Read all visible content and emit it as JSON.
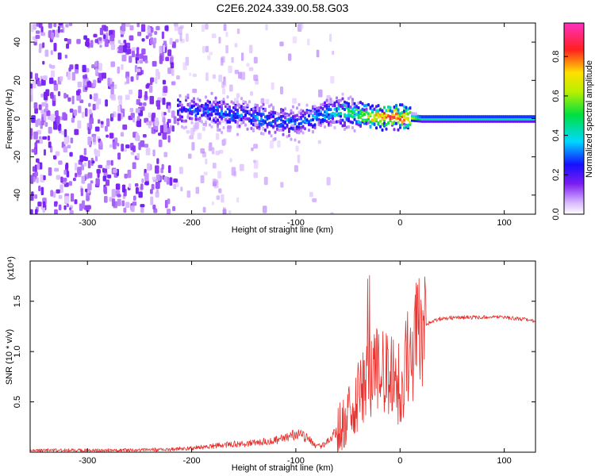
{
  "figure": {
    "title": "C2E6.2024.339.00.58.G03"
  },
  "colors": {
    "snr_line": "#e8302c",
    "spectrogram_noise": "#7b2cf0",
    "spectrogram_signal_core": "#22e0c8",
    "spectrogram_peak": "#e8202a"
  },
  "chart_data": [
    {
      "type": "heatmap",
      "name": "spectrogram",
      "xlabel": "Height of straight line (km)",
      "ylabel": "Frequency (Hz)",
      "xlim": [
        -355,
        130
      ],
      "ylim": [
        -50,
        50
      ],
      "x_ticks": [
        -300,
        -200,
        -100,
        0,
        100
      ],
      "y_ticks": [
        -40,
        -20,
        0,
        20,
        40
      ],
      "colorbar": {
        "label": "Normalized spectral amplitude",
        "range": [
          0.0,
          0.97
        ],
        "ticks": [
          "0.0",
          "0.2",
          "0.4",
          "0.6",
          "0.8"
        ],
        "tick_values": [
          0.0,
          0.2,
          0.4,
          0.6,
          0.8
        ],
        "colormap": "rainbow (white-violet-blue-cyan-green-yellow-red-magenta)"
      },
      "signal_track": [
        {
          "x": -210,
          "center_hz": 5,
          "amplitude": 0.25
        },
        {
          "x": -180,
          "center_hz": 4,
          "amplitude": 0.3
        },
        {
          "x": -150,
          "center_hz": 2,
          "amplitude": 0.3
        },
        {
          "x": -120,
          "center_hz": -1,
          "amplitude": 0.3
        },
        {
          "x": -100,
          "center_hz": -2,
          "amplitude": 0.3
        },
        {
          "x": -80,
          "center_hz": 2,
          "amplitude": 0.35
        },
        {
          "x": -60,
          "center_hz": 4,
          "amplitude": 0.45
        },
        {
          "x": -40,
          "center_hz": 2,
          "amplitude": 0.55
        },
        {
          "x": -25,
          "center_hz": 1,
          "amplitude": 0.75
        },
        {
          "x": -10,
          "center_hz": 1,
          "amplitude": 0.9
        },
        {
          "x": 0,
          "center_hz": 1,
          "amplitude": 0.85
        },
        {
          "x": 20,
          "center_hz": 0,
          "amplitude": 0.45
        },
        {
          "x": 130,
          "center_hz": 0,
          "amplitude": 0.45
        }
      ]
    },
    {
      "type": "line",
      "name": "snr",
      "xlabel": "Height of straight line (km)",
      "ylabel": "SNR (10 * v/v)",
      "y_multiplier": "(x10⁴)",
      "xlim": [
        -355,
        130
      ],
      "ylim": [
        0,
        1.9
      ],
      "x_ticks": [
        -300,
        -200,
        -100,
        0,
        100
      ],
      "y_ticks": [
        0.5,
        1.0,
        1.5
      ],
      "y_tick_labels": [
        "0.5",
        "1.0",
        "1.5"
      ],
      "series": [
        {
          "x": [
            -355,
            -300,
            -250,
            -220,
            -200,
            -180,
            -160,
            -140,
            -120,
            -110,
            -100,
            -95,
            -90,
            -85,
            -80,
            -75,
            -70,
            -60,
            -50,
            -45,
            -40,
            -35,
            -30,
            -25,
            -20,
            -15,
            -10,
            -5,
            0,
            5,
            10,
            15,
            20,
            25,
            30,
            40,
            60,
            80,
            100,
            120,
            130
          ],
          "y": [
            0.02,
            0.02,
            0.02,
            0.03,
            0.04,
            0.06,
            0.08,
            0.09,
            0.12,
            0.14,
            0.18,
            0.17,
            0.15,
            0.1,
            0.06,
            0.06,
            0.1,
            0.22,
            0.35,
            0.45,
            0.55,
            0.62,
            0.75,
            0.8,
            0.85,
            0.8,
            0.75,
            0.68,
            0.7,
            0.85,
            1.0,
            1.12,
            1.2,
            1.26,
            1.3,
            1.33,
            1.34,
            1.34,
            1.34,
            1.32,
            1.3
          ]
        }
      ]
    }
  ]
}
